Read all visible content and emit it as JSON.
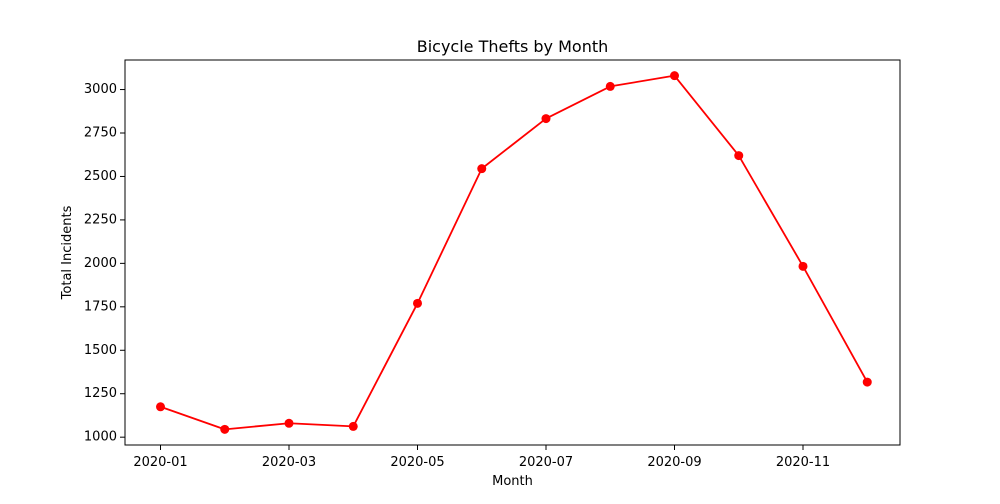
{
  "chart_data": {
    "type": "line",
    "title": "Bicycle Thefts by Month",
    "xlabel": "Month",
    "ylabel": "Total Incidents",
    "x": [
      "2020-01",
      "2020-02",
      "2020-03",
      "2020-04",
      "2020-05",
      "2020-06",
      "2020-07",
      "2020-08",
      "2020-09",
      "2020-10",
      "2020-11",
      "2020-12"
    ],
    "series": [
      {
        "values": [
          1175,
          1045,
          1080,
          1062,
          1770,
          2545,
          2833,
          3018,
          3080,
          2620,
          1983,
          1317
        ],
        "color": "#ff0000",
        "marker": "circle"
      }
    ],
    "x_ticks": [
      "2020-01",
      "2020-03",
      "2020-05",
      "2020-07",
      "2020-09",
      "2020-11"
    ],
    "y_ticks": [
      1000,
      1250,
      1500,
      1750,
      2000,
      2250,
      2500,
      2750,
      3000
    ],
    "ylim": [
      955,
      3170
    ],
    "grid": false,
    "legend": "none"
  }
}
